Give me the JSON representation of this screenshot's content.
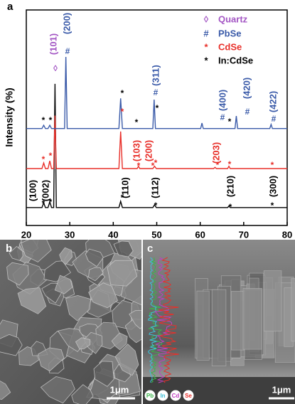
{
  "chart_data": {
    "type": "line",
    "panel_label": "a",
    "ylabel": "Intensity (%)",
    "xlim": [
      20,
      80
    ],
    "xticks": [
      20,
      30,
      40,
      50,
      60,
      70,
      80
    ],
    "ylim": [
      0,
      100
    ],
    "series": [
      {
        "name": "In:CdSe",
        "symbol": "*",
        "color": "#000000",
        "x": [
          20,
          23.6,
          24.0,
          24.4,
          25.0,
          25.4,
          25.8,
          26.3,
          26.6,
          26.9,
          41.3,
          41.7,
          42.1,
          49.1,
          49.5,
          49.9,
          66.3,
          66.6,
          66.9,
          80
        ],
        "values": [
          8.3,
          8.3,
          10.5,
          8.3,
          8.3,
          11,
          8.3,
          8.3,
          65.7,
          8.3,
          8.3,
          11.2,
          8.3,
          8.3,
          9.6,
          8.3,
          8.3,
          9,
          8.3,
          8.3
        ]
      },
      {
        "name": "CdSe",
        "symbol": "*",
        "color": "#e8302a",
        "x": [
          20,
          23.6,
          24.0,
          24.4,
          25.0,
          25.4,
          25.8,
          26.3,
          26.6,
          26.9,
          41.3,
          41.7,
          42.1,
          45.5,
          45.8,
          46.1,
          49.1,
          49.5,
          49.9,
          63.1,
          63.4,
          63.7,
          66.3,
          66.6,
          66.9,
          80
        ],
        "values": [
          26.4,
          26.4,
          29,
          26.4,
          26.4,
          30,
          26.4,
          26.4,
          51,
          26.4,
          26.4,
          43.6,
          26.4,
          26.4,
          27.5,
          26.4,
          26.4,
          27.5,
          26.4,
          26.4,
          27,
          26.4,
          26.4,
          27.5,
          26.4,
          26.4
        ]
      },
      {
        "name": "PbSe",
        "symbol": "#",
        "color": "#3b5ba9",
        "x": [
          20,
          23.6,
          24.0,
          24.4,
          25.0,
          25.4,
          25.8,
          28.8,
          29.1,
          29.4,
          41.3,
          41.7,
          42.1,
          49.1,
          49.4,
          49.7,
          60.1,
          60.4,
          60.7,
          68.0,
          68.3,
          68.6,
          76.0,
          76.3,
          76.6,
          80
        ],
        "values": [
          45,
          45,
          46.5,
          45,
          45,
          46.5,
          45,
          45,
          78.2,
          45,
          45,
          59,
          45,
          45,
          58.4,
          45,
          45,
          47.5,
          45,
          45,
          50.8,
          45,
          45,
          46.9,
          45,
          45
        ]
      }
    ],
    "reference": {
      "name": "Quartz",
      "symbol": "◊",
      "color": "#a356c4"
    },
    "annotations": [
      {
        "text": "(100)",
        "color": "#000000"
      },
      {
        "text": "(002)",
        "color": "#000000"
      },
      {
        "text": "(110)",
        "color": "#000000"
      },
      {
        "text": "(112)",
        "color": "#000000"
      },
      {
        "text": "(210)",
        "color": "#000000"
      },
      {
        "text": "(300)",
        "color": "#000000"
      },
      {
        "text": "*",
        "color": "#000000"
      },
      {
        "text": "*",
        "color": "#000000"
      },
      {
        "text": "*",
        "color": "#000000"
      },
      {
        "text": "*",
        "color": "#000000"
      },
      {
        "text": "*",
        "color": "#000000"
      },
      {
        "text": "*",
        "color": "#000000"
      },
      {
        "text": "*",
        "color": "#000000"
      },
      {
        "text": "*",
        "color": "#000000"
      },
      {
        "text": "*",
        "color": "#000000"
      },
      {
        "text": "*",
        "color": "#000000"
      },
      {
        "text": "*",
        "color": "#000000"
      },
      {
        "text": "*",
        "color": "#000000"
      },
      {
        "text": "(103)",
        "color": "#e8302a"
      },
      {
        "text": "(200)",
        "color": "#e8302a"
      },
      {
        "text": "(203)",
        "color": "#e8302a"
      },
      {
        "text": "*",
        "color": "#e8302a"
      },
      {
        "text": "*",
        "color": "#e8302a"
      },
      {
        "text": "*",
        "color": "#e8302a"
      },
      {
        "text": "*",
        "color": "#e8302a"
      },
      {
        "text": "*",
        "color": "#e8302a"
      },
      {
        "text": "*",
        "color": "#e8302a"
      },
      {
        "text": "*",
        "color": "#e8302a"
      },
      {
        "text": "*",
        "color": "#e8302a"
      },
      {
        "text": "*",
        "color": "#e8302a"
      },
      {
        "text": "(200)",
        "color": "#3b5ba9"
      },
      {
        "text": "(311)",
        "color": "#3b5ba9"
      },
      {
        "text": "(400)",
        "color": "#3b5ba9"
      },
      {
        "text": "(420)",
        "color": "#3b5ba9"
      },
      {
        "text": "(422)",
        "color": "#3b5ba9"
      },
      {
        "text": "#",
        "color": "#3b5ba9"
      },
      {
        "text": "#",
        "color": "#3b5ba9"
      },
      {
        "text": "#",
        "color": "#3b5ba9"
      },
      {
        "text": "#",
        "color": "#3b5ba9"
      },
      {
        "text": "#",
        "color": "#3b5ba9"
      },
      {
        "text": "(101)",
        "color": "#a356c4"
      },
      {
        "text": "◊",
        "color": "#a356c4"
      }
    ]
  },
  "panels": {
    "b": {
      "label": "b",
      "scale": "1μm"
    },
    "c": {
      "label": "c",
      "scale": "1μm",
      "elements": [
        {
          "name": "Pb",
          "color": "#3cb44b"
        },
        {
          "name": "In",
          "color": "#3fc0d8"
        },
        {
          "name": "Cd",
          "color": "#c040c0"
        },
        {
          "name": "Se",
          "color": "#e8302a"
        }
      ]
    }
  }
}
